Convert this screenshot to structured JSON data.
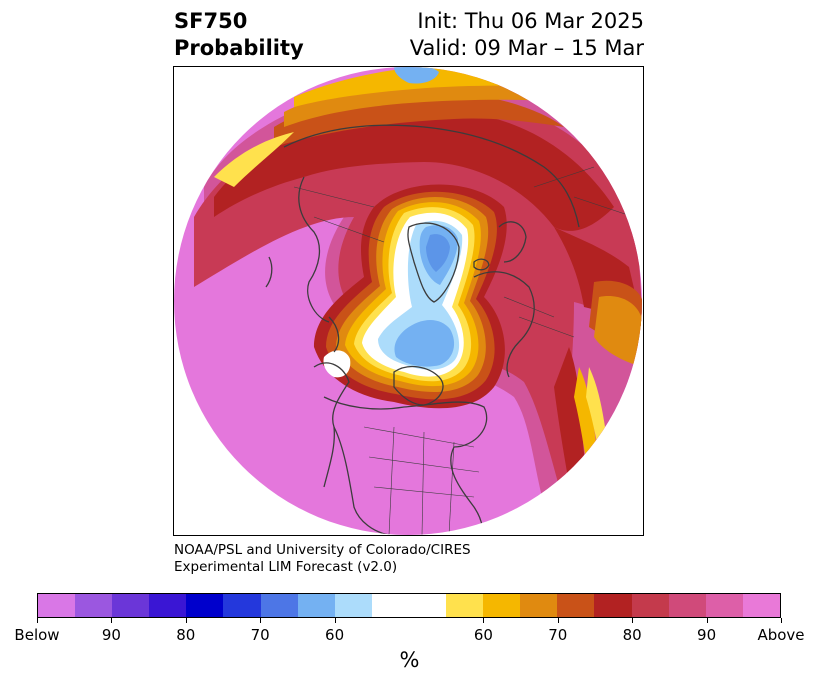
{
  "title": {
    "left_line1": "SF750",
    "left_line2": "Probability",
    "right_line1": "Init: Thu 06 Mar 2025",
    "right_line2": "Valid: 09 Mar – 15 Mar"
  },
  "credit": {
    "line1": "NOAA/PSL and University of Colorado/CIRES",
    "line2": "Experimental LIM Forecast (v2.0)"
  },
  "colorbar": {
    "units": "%",
    "colors": [
      "#d977e6",
      "#9b57e0",
      "#6b36d8",
      "#3a16d4",
      "#0000cc",
      "#2438dc",
      "#4d76e6",
      "#74b1f2",
      "#acdcfb",
      "#ffffff",
      "#ffffff",
      "#ffe14d",
      "#f5b700",
      "#e08a10",
      "#c95218",
      "#b22222",
      "#c43a4c",
      "#d04a7a",
      "#dd5fa8",
      "#e979d8"
    ],
    "ticks": [
      "Below",
      "90",
      "80",
      "70",
      "60",
      "60",
      "70",
      "80",
      "90",
      "Above"
    ]
  },
  "map": {
    "projection": "north-polar-stereographic",
    "colors": {
      "pink": "#e477dc",
      "magenta": "#d2559a",
      "crimson": "#c83a55",
      "red": "#b22222",
      "orange": "#c95218",
      "amber": "#e08a10",
      "gold": "#f5b700",
      "yellow": "#ffe14d",
      "pale_blue": "#acdcfb",
      "light_blue": "#74b1f2",
      "mid_blue": "#5c95e8",
      "border": "#3c3c3c"
    }
  }
}
